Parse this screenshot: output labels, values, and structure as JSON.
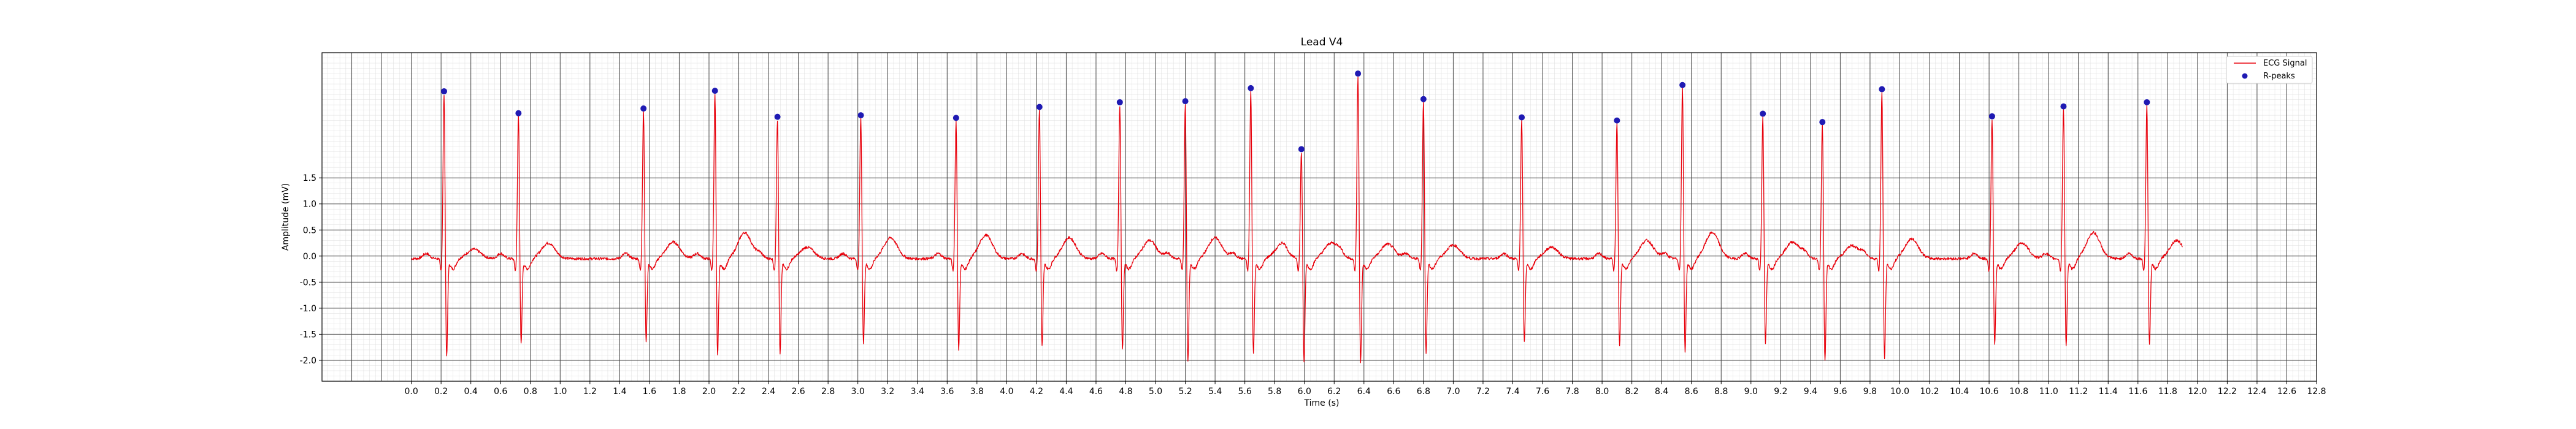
{
  "chart_data": {
    "type": "line",
    "title": "Lead V4",
    "xlabel": "Time (s)",
    "ylabel": "Amplitude (mV)",
    "xlim": [
      -0.6,
      12.8
    ],
    "ylim": [
      -2.4,
      3.9
    ],
    "x_ticks": [
      "0.0",
      "0.2",
      "0.4",
      "0.6",
      "0.8",
      "1.0",
      "1.2",
      "1.4",
      "1.6",
      "1.8",
      "2.0",
      "2.2",
      "2.4",
      "2.6",
      "2.8",
      "3.0",
      "3.2",
      "3.4",
      "3.6",
      "3.8",
      "4.0",
      "4.2",
      "4.4",
      "4.6",
      "4.8",
      "5.0",
      "5.2",
      "5.4",
      "5.6",
      "5.8",
      "6.0",
      "6.2",
      "6.4",
      "6.6",
      "6.8",
      "7.0",
      "7.2",
      "7.4",
      "7.6",
      "7.8",
      "8.0",
      "8.2",
      "8.4",
      "8.6",
      "8.8",
      "9.0",
      "9.2",
      "9.4",
      "9.6",
      "9.8",
      "10.0",
      "10.2",
      "10.4",
      "10.6",
      "10.8",
      "11.0",
      "11.2",
      "11.4",
      "11.6",
      "11.8",
      "12.0",
      "12.2",
      "12.4",
      "12.6",
      "12.8"
    ],
    "y_ticks": [
      "-2.0",
      "-1.5",
      "-1.0",
      "-0.5",
      "0.0",
      "0.5",
      "1.0",
      "1.5"
    ],
    "grid": true,
    "legend_position": "top-right",
    "series": [
      {
        "name": "ECG Signal",
        "color": "#e8000b",
        "r_peaks_t": [
          0.22,
          0.72,
          1.56,
          2.04,
          2.46,
          3.02,
          3.66,
          4.22,
          4.76,
          5.2,
          5.64,
          5.98,
          6.36,
          6.8,
          7.46,
          8.1,
          8.54,
          9.08,
          9.48,
          9.88,
          10.62,
          11.1,
          11.66
        ],
        "r_peaks_amp": [
          3.16,
          2.74,
          2.83,
          3.17,
          2.67,
          2.7,
          2.65,
          2.86,
          2.95,
          2.97,
          3.22,
          2.05,
          3.5,
          3.01,
          2.66,
          2.6,
          3.28,
          2.73,
          2.57,
          3.2,
          2.68,
          2.87,
          2.95
        ],
        "s_wave_amp": [
          -1.96,
          -1.7,
          -1.65,
          -1.93,
          -1.9,
          -1.68,
          -1.82,
          -1.74,
          -1.82,
          -2.03,
          -1.9,
          -2.03,
          -2.07,
          -1.87,
          -1.66,
          -1.71,
          -1.85,
          -1.68,
          -2.02,
          -1.98,
          -1.7,
          -1.74,
          -1.72
        ],
        "t_wave_amp": [
          0.18,
          0.3,
          0.32,
          0.5,
          0.22,
          0.4,
          0.45,
          0.4,
          0.35,
          0.4,
          0.22,
          0.3,
          0.28,
          0.26,
          0.22,
          0.35,
          0.5,
          0.32,
          0.25,
          0.38,
          0.3,
          0.5,
          0.35
        ],
        "signal_end": 11.9
      },
      {
        "name": "R-peaks",
        "color": "#1f1ab3",
        "t": [
          0.22,
          0.72,
          1.56,
          2.04,
          2.46,
          3.02,
          3.66,
          4.22,
          4.76,
          5.2,
          5.64,
          5.98,
          6.36,
          6.8,
          7.46,
          8.1,
          8.54,
          9.08,
          9.48,
          9.88,
          10.62,
          11.1,
          11.66
        ],
        "amplitude": [
          3.16,
          2.74,
          2.83,
          3.17,
          2.67,
          2.7,
          2.65,
          2.86,
          2.95,
          2.97,
          3.22,
          2.05,
          3.5,
          3.01,
          2.66,
          2.6,
          3.28,
          2.73,
          2.57,
          3.2,
          2.68,
          2.87,
          2.95
        ]
      }
    ]
  }
}
